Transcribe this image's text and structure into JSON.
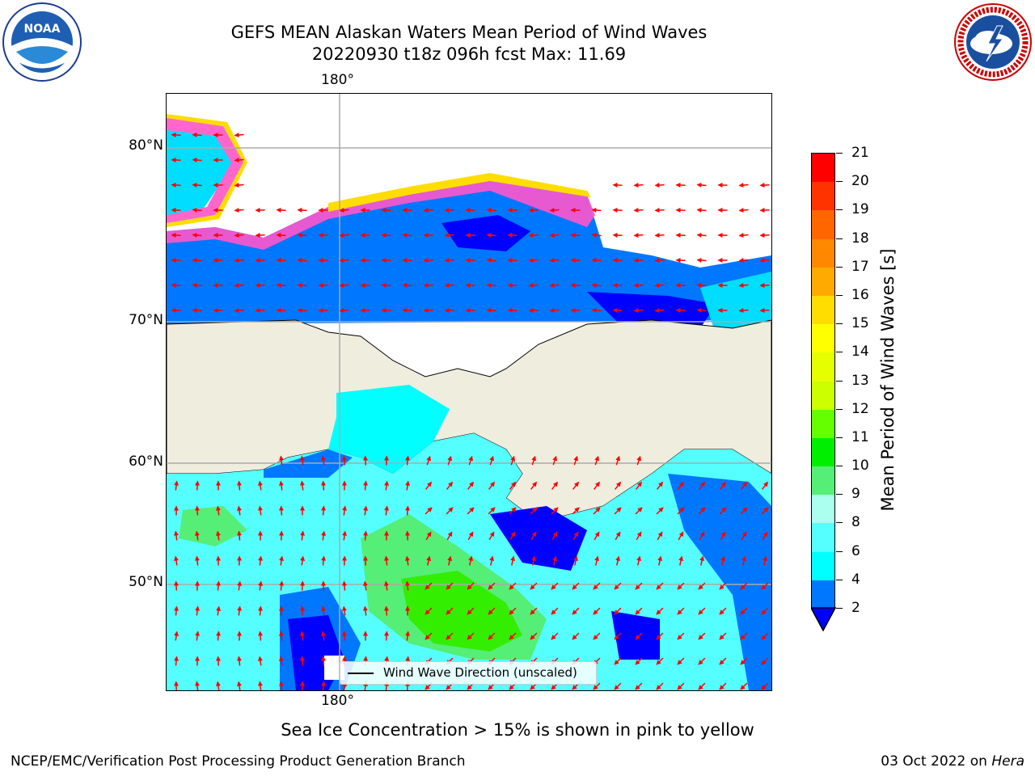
{
  "title": {
    "line1": "GEFS MEAN Alaskan Waters Mean Period of Wind Waves",
    "line2": "20220930 t18z 096h fcst   Max: 11.69"
  },
  "map": {
    "lat_labels": [
      "80°N",
      "70°N",
      "60°N",
      "50°N"
    ],
    "lon_label_top": "180°",
    "lon_label_bottom": "180°",
    "legend_text": "Wind Wave Direction (unscaled)",
    "land_color": "#efedde",
    "arrow_color": "#ff0000"
  },
  "colorbar": {
    "title": "Mean Period of Wind Waves [s]",
    "ticks": [
      "21",
      "20",
      "19",
      "18",
      "17",
      "16",
      "15",
      "14",
      "13",
      "12",
      "11",
      "10",
      "9",
      "8",
      "6",
      "4",
      "2"
    ],
    "colors": [
      "#ff0000",
      "#ff3300",
      "#ff6600",
      "#ff8800",
      "#ffaa00",
      "#ffdd00",
      "#ffff00",
      "#e6ff00",
      "#ccff00",
      "#66ff00",
      "#00ee00",
      "#55ee77",
      "#aaffee",
      "#55ffff",
      "#00ffff",
      "#0077ff"
    ],
    "extend_color": "#0000ff"
  },
  "footer": {
    "ice_note": "Sea Ice Concentration > 15% is shown in pink to yellow",
    "left": "NCEP/EMC/Verification Post Processing Product Generation Branch",
    "right_date": "03 Oct 2022 on",
    "right_machine": "Hera"
  },
  "logos": {
    "noaa": "NOAA",
    "nws": "NATIONAL WEATHER SERVICE"
  }
}
